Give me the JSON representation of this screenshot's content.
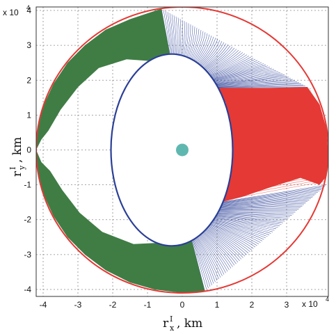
{
  "chart_data": {
    "type": "scatter",
    "title": "",
    "xlabel": {
      "base": "r",
      "sup": "I",
      "sub": "x",
      "unit": ", km"
    },
    "ylabel": {
      "base": "r",
      "sup": "I",
      "sub": "y",
      "unit": ", km"
    },
    "scale_multiplier": {
      "base": "x 10",
      "exp": "4"
    },
    "xlim": [
      -4.2,
      4.2
    ],
    "ylim": [
      -4.2,
      4.1
    ],
    "xticks": [
      -4,
      -3,
      -2,
      -1,
      0,
      1,
      2,
      3
    ],
    "xtick_labels": [
      "-4",
      "-3",
      "-2",
      "-1",
      "0",
      "1",
      "2",
      "3"
    ],
    "yticks": [
      -4,
      -3,
      -2,
      -1,
      0,
      1,
      2,
      3,
      4
    ],
    "ytick_labels": [
      "-4",
      "-3",
      "-2",
      "-1",
      "0",
      "1",
      "2",
      "3",
      "4"
    ],
    "grid": true,
    "units_note": "axis values in units of 10^4 km",
    "inner_ellipse": {
      "center": [
        -0.3,
        0
      ],
      "semi_axis_x": 1.75,
      "semi_axis_y": 2.75,
      "color": "#2a3f96"
    },
    "outer_ellipse": {
      "center": [
        0,
        0
      ],
      "semi_axis_x": 4.2,
      "semi_axis_y": 4.1,
      "color": "#e53935"
    },
    "earth": {
      "center": [
        0,
        0
      ],
      "radius": 0.18,
      "color": "#5fb8b0"
    },
    "regions": [
      {
        "color": "#3f7d45",
        "polygon": [
          [
            -4.2,
            0
          ],
          [
            -4.15,
            -0.6
          ],
          [
            -4.0,
            -1.25
          ],
          [
            -3.7,
            -1.9
          ],
          [
            -3.3,
            -2.5
          ],
          [
            -2.8,
            -3.0
          ],
          [
            -2.2,
            -3.45
          ],
          [
            -1.5,
            -3.8
          ],
          [
            -0.8,
            -4.0
          ],
          [
            0.0,
            -4.1
          ],
          [
            0.65,
            -4.05
          ],
          [
            0.25,
            -2.5
          ],
          [
            -0.4,
            -2.65
          ],
          [
            -1.4,
            -2.7
          ],
          [
            -2.3,
            -2.35
          ],
          [
            -2.95,
            -1.8
          ],
          [
            -3.45,
            -1.15
          ],
          [
            -3.8,
            -0.6
          ],
          [
            -4.05,
            -0.35
          ]
        ]
      },
      {
        "color": "#3f7d45",
        "polygon": [
          [
            -4.2,
            0
          ],
          [
            -4.15,
            0.6
          ],
          [
            -4.0,
            1.25
          ],
          [
            -3.7,
            1.9
          ],
          [
            -3.3,
            2.5
          ],
          [
            -2.8,
            3.0
          ],
          [
            -2.2,
            3.45
          ],
          [
            -1.5,
            3.75
          ],
          [
            -0.6,
            4.05
          ],
          [
            -0.3,
            2.45
          ],
          [
            -0.9,
            2.55
          ],
          [
            -1.6,
            2.6
          ],
          [
            -2.4,
            2.35
          ],
          [
            -3.0,
            1.8
          ],
          [
            -3.5,
            1.15
          ],
          [
            -3.85,
            0.55
          ],
          [
            -4.05,
            0.3
          ]
        ]
      },
      {
        "color": "#e53935",
        "polygon": [
          [
            1.0,
            1.78
          ],
          [
            2.5,
            1.78
          ],
          [
            3.6,
            1.8
          ],
          [
            3.95,
            1.3
          ],
          [
            4.15,
            0.6
          ],
          [
            4.2,
            -0.2
          ],
          [
            4.15,
            -0.75
          ],
          [
            3.95,
            -1.0
          ],
          [
            3.4,
            -0.8
          ],
          [
            2.6,
            -1.05
          ],
          [
            1.7,
            -1.35
          ],
          [
            1.1,
            -1.5
          ],
          [
            1.35,
            -0.8
          ],
          [
            1.45,
            0.0
          ],
          [
            1.35,
            0.85
          ],
          [
            1.25,
            1.35
          ]
        ]
      }
    ],
    "trajectory_fans": [
      {
        "color": "#2a3f96",
        "lines": 70,
        "from": [
          [
            -0.3,
            2.45
          ],
          [
            1.0,
            1.78
          ]
        ],
        "to": [
          [
            -0.6,
            4.05
          ],
          [
            3.6,
            1.8
          ]
        ]
      },
      {
        "color": "#2a3f96",
        "lines": 70,
        "from": [
          [
            0.25,
            -2.5
          ],
          [
            1.1,
            -1.5
          ]
        ],
        "to": [
          [
            0.65,
            -4.05
          ],
          [
            4.15,
            -1.0
          ]
        ]
      },
      {
        "color": "#ef5350",
        "lines": 45,
        "from": [
          [
            1.25,
            1.6
          ],
          [
            1.1,
            -1.45
          ]
        ],
        "to": [
          [
            3.7,
            1.75
          ],
          [
            4.1,
            -0.9
          ]
        ]
      }
    ]
  }
}
